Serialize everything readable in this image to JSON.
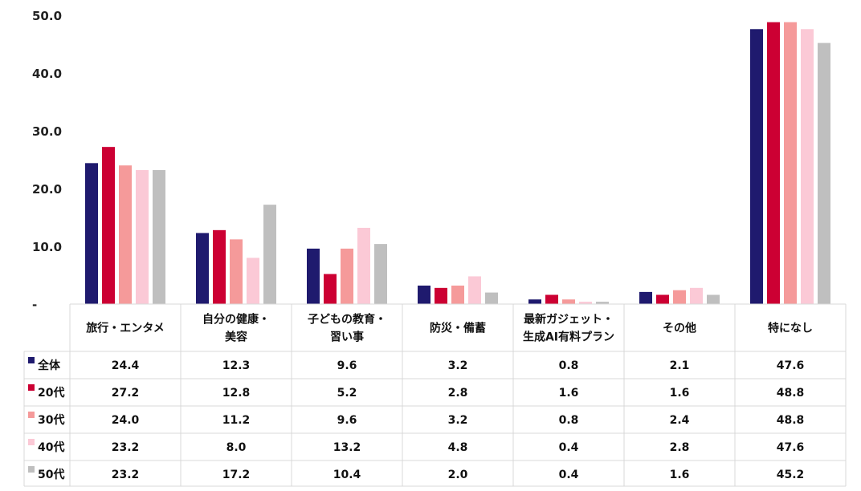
{
  "chart_data": {
    "type": "bar",
    "ylim": [
      0,
      50
    ],
    "y_ticks": [
      "50.0",
      "40.0",
      "30.0",
      "20.0",
      "10.0",
      "-"
    ],
    "y_tick_values": [
      50,
      40,
      30,
      20,
      10,
      0
    ],
    "categories": [
      [
        "旅行・エンタメ"
      ],
      [
        "自分の健康・",
        "美容"
      ],
      [
        "子どもの教育・",
        "習い事"
      ],
      [
        "防災・備蓄"
      ],
      [
        "最新ガジェット・",
        "生成AI有料プラン"
      ],
      [
        "その他"
      ],
      [
        "特になし"
      ]
    ],
    "series": [
      {
        "name": "全体",
        "color": "#1f1a6e",
        "values": [
          24.4,
          12.3,
          9.6,
          3.2,
          0.8,
          2.1,
          47.6
        ],
        "labels": [
          "24.4",
          "12.3",
          "9.6",
          "3.2",
          "0.8",
          "2.1",
          "47.6"
        ]
      },
      {
        "name": "20代",
        "color": "#cc0033",
        "values": [
          27.2,
          12.8,
          5.2,
          2.8,
          1.6,
          1.6,
          48.8
        ],
        "labels": [
          "27.2",
          "12.8",
          "5.2",
          "2.8",
          "1.6",
          "1.6",
          "48.8"
        ]
      },
      {
        "name": "30代",
        "color": "#f59a9a",
        "values": [
          24.0,
          11.2,
          9.6,
          3.2,
          0.8,
          2.4,
          48.8
        ],
        "labels": [
          "24.0",
          "11.2",
          "9.6",
          "3.2",
          "0.8",
          "2.4",
          "48.8"
        ]
      },
      {
        "name": "40代",
        "color": "#fbc9d6",
        "values": [
          23.2,
          8.0,
          13.2,
          4.8,
          0.4,
          2.8,
          47.6
        ],
        "labels": [
          "23.2",
          "8.0",
          "13.2",
          "4.8",
          "0.4",
          "2.8",
          "47.6"
        ]
      },
      {
        "name": "50代",
        "color": "#bfbfbf",
        "values": [
          23.2,
          17.2,
          10.4,
          2.0,
          0.4,
          1.6,
          45.2
        ],
        "labels": [
          "23.2",
          "17.2",
          "10.4",
          "2.0",
          "0.4",
          "1.6",
          "45.2"
        ]
      }
    ],
    "legend": "data-table"
  }
}
